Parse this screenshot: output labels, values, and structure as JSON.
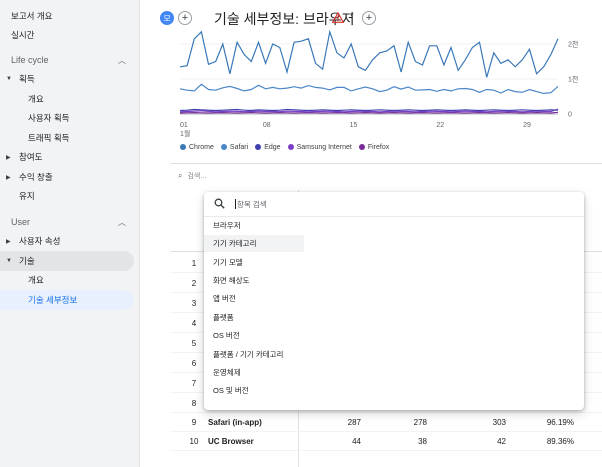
{
  "sidebar": {
    "top_items": [
      {
        "label": "보고서 개요"
      },
      {
        "label": "실시간"
      }
    ],
    "sections": [
      {
        "label": "Life cycle"
      },
      {
        "label": "User"
      }
    ],
    "lifecycle_items": [
      {
        "label": "획득"
      },
      {
        "label": "개요"
      },
      {
        "label": "사용자 획득"
      },
      {
        "label": "트래픽 획득"
      },
      {
        "label": "참여도"
      },
      {
        "label": "수익 창출"
      },
      {
        "label": "유지"
      }
    ],
    "user_items": [
      {
        "label": "사용자 속성"
      },
      {
        "label": "기술"
      },
      {
        "label": "개요"
      },
      {
        "label": "기술 세부정보"
      }
    ]
  },
  "header": {
    "badge": "모",
    "add_symbol": "+",
    "title": "기술 세부정보: 브라우저",
    "warning_icon": "warning-triangle-icon",
    "caret_symbol": "▾"
  },
  "chart_data": {
    "type": "line",
    "x_tick_labels": [
      "01\n1월",
      "08",
      "15",
      "22",
      "29"
    ],
    "x_tick_top": [
      "01",
      "08",
      "15",
      "22",
      "29"
    ],
    "x_tick_month": "1월",
    "y_right_ticks": [
      "2천",
      "1천",
      "0"
    ],
    "ylim": [
      0,
      2400
    ],
    "series": [
      {
        "name": "Chrome",
        "color": "#3a78b8",
        "values": [
          1350,
          1380,
          2150,
          2350,
          1420,
          1500,
          2000,
          1150,
          2050,
          1700,
          1500,
          2050,
          1450,
          2000,
          1900,
          1200,
          2050,
          2080,
          2150,
          1450,
          1280,
          2350,
          1750,
          1600,
          2000,
          1350,
          1250,
          1550,
          1750,
          1800,
          1950,
          1200,
          2050,
          1500,
          1400,
          1950,
          1950,
          1400,
          1900,
          1250,
          1550,
          1900,
          2050,
          1050,
          1750,
          1450,
          1550,
          1350,
          1550,
          1850,
          1150,
          1350,
          1700,
          2150
        ]
      },
      {
        "name": "Safari",
        "color": "#4a86c8",
        "values": [
          720,
          680,
          660,
          850,
          700,
          680,
          750,
          790,
          730,
          660,
          700,
          820,
          720,
          760,
          720,
          740,
          780,
          740,
          810,
          760,
          740,
          690,
          760,
          760,
          660,
          720,
          770,
          720,
          640,
          680,
          780,
          710,
          770,
          680,
          690,
          700,
          650,
          700,
          660,
          720,
          730,
          700,
          620,
          700,
          680,
          600,
          700,
          640,
          620,
          700,
          640,
          590,
          610,
          790
        ]
      },
      {
        "name": "Edge",
        "color": "#3f3fb0",
        "values": [
          100,
          110,
          130,
          120,
          110,
          100,
          110,
          120,
          130,
          110,
          100,
          120,
          110,
          100,
          110,
          130,
          120,
          110,
          100,
          110,
          120,
          110,
          100,
          110,
          120,
          110,
          100,
          110,
          120,
          110,
          100,
          110,
          120,
          110,
          100,
          110,
          120,
          110,
          100,
          110,
          120,
          110,
          100,
          110,
          120,
          110,
          100,
          110,
          120,
          110,
          100,
          110,
          120,
          110
        ]
      },
      {
        "name": "Samsung Internet",
        "color": "#7b3fc4",
        "values": [
          60,
          70,
          80,
          90,
          75,
          60,
          70,
          80,
          75,
          65,
          70,
          80,
          75,
          70,
          65,
          80,
          75,
          70,
          60,
          70,
          75,
          80,
          70,
          60,
          70,
          80,
          75,
          70,
          60,
          70,
          80,
          75,
          70,
          60,
          70,
          80,
          75,
          70,
          60,
          70,
          80,
          75,
          70,
          60,
          70,
          80,
          75,
          70,
          60,
          70,
          80,
          75,
          70,
          140
        ]
      },
      {
        "name": "Firefox",
        "color": "#7a2b9a",
        "values": [
          30,
          35,
          40,
          35,
          30,
          35,
          40,
          35,
          30,
          35,
          40,
          35,
          30,
          35,
          40,
          35,
          30,
          35,
          40,
          35,
          30,
          35,
          40,
          35,
          30,
          35,
          40,
          35,
          30,
          35,
          40,
          35,
          30,
          35,
          40,
          35,
          30,
          35,
          40,
          35,
          30,
          35,
          40,
          35,
          30,
          35,
          40,
          35,
          30,
          35,
          40,
          35,
          30,
          50
        ]
      }
    ],
    "grid": true,
    "legend_position": "bottom-left"
  },
  "table_search": {
    "placeholder": "검색..."
  },
  "table": {
    "rows": [
      {
        "num": "1"
      },
      {
        "num": "2"
      },
      {
        "num": "3"
      },
      {
        "num": "4"
      },
      {
        "num": "5"
      },
      {
        "num": "6"
      },
      {
        "num": "7"
      },
      {
        "num": "8"
      },
      {
        "num": "9",
        "name": "Safari (in-app)",
        "c1": "287",
        "c2": "278",
        "c3": "303",
        "c4": "96.19%"
      },
      {
        "num": "10",
        "name": "UC Browser",
        "c1": "44",
        "c2": "38",
        "c3": "42",
        "c4": "89.36%"
      }
    ]
  },
  "dropdown": {
    "search_placeholder": "항목 검색",
    "items": [
      {
        "label": "브라우저"
      },
      {
        "label": "기기 카테고리"
      },
      {
        "label": "기기 모델"
      },
      {
        "label": "화면 해상도"
      },
      {
        "label": "앱 버전"
      },
      {
        "label": "플랫폼"
      },
      {
        "label": "OS 버전"
      },
      {
        "label": "플랫폼 / 기기 카테고리"
      },
      {
        "label": "운영체제"
      },
      {
        "label": "OS 및 버전"
      }
    ],
    "hover_index": 1
  }
}
